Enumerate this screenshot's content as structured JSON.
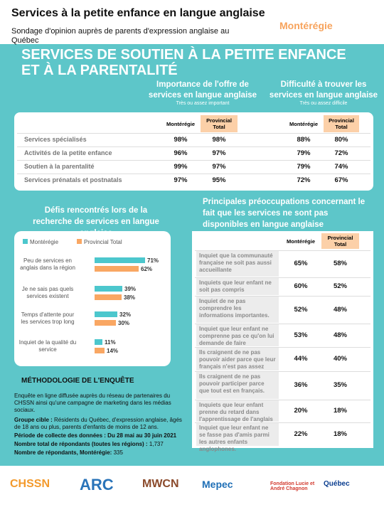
{
  "header": {
    "title": "Services à la petite enfance en langue anglaise",
    "subtitle": "Sondage d'opinion auprès de parents d'expression anglaise au Québec",
    "region": "Montérégie"
  },
  "section": {
    "title": "SERVICES DE SOUTIEN À LA PETITE ENFANCE ET À LA PARENTALITÉ"
  },
  "services_table": {
    "groups": [
      {
        "title": "Importance de l'offre de services en langue anglaise",
        "note": "Très ou assez important"
      },
      {
        "title": "Difficulté à trouver les services en langue anglaise",
        "note": "Très ou assez difficile"
      }
    ],
    "column_headers": [
      "Montérégie",
      "Provincial Total",
      "Montérégie",
      "Provincial Total"
    ],
    "rows": [
      {
        "label": "Services spécialisés",
        "values": [
          "98%",
          "98%",
          "88%",
          "80%"
        ]
      },
      {
        "label": "Activités de la petite enfance",
        "values": [
          "96%",
          "97%",
          "79%",
          "72%"
        ]
      },
      {
        "label": "Soutien à la parentalité",
        "values": [
          "99%",
          "97%",
          "79%",
          "74%"
        ]
      },
      {
        "label": "Services prénatals et postnatals",
        "values": [
          "97%",
          "95%",
          "72%",
          "67%"
        ]
      }
    ]
  },
  "challenges_chart": {
    "type": "bar",
    "title": "Défis rencontrés lors de la recherche de services en langue anglaise",
    "categories": [
      "Peu de services en anglais dans la région",
      "Je ne sais pas quels services existent",
      "Temps d'attente pour les services trop long",
      "Inquiet de la qualité du service"
    ],
    "series": [
      {
        "name": "Montérégie",
        "color": "#4cc7cd",
        "values": [
          71,
          39,
          32,
          11
        ],
        "value_labels": [
          "71%",
          "39%",
          "32%",
          "11%"
        ]
      },
      {
        "name": "Provincial Total",
        "color": "#f9a763",
        "values": [
          62,
          38,
          30,
          14
        ],
        "value_labels": [
          "62%",
          "38%",
          "30%",
          "14%"
        ]
      }
    ]
  },
  "concerns_table": {
    "title": "Principales préoccupations concernant le fait que les services ne sont pas disponibles en langue anglaise",
    "column_headers": [
      "Montérégie",
      "Provincial Total"
    ],
    "rows": [
      {
        "label": "Inquiet que la communauté française ne soit pas aussi accueillante",
        "values": [
          "65%",
          "58%"
        ]
      },
      {
        "label": "Inquiets que leur enfant ne soit pas compris",
        "values": [
          "60%",
          "52%"
        ]
      },
      {
        "label": "Inquiet de ne pas comprendre les informations importantes.",
        "values": [
          "52%",
          "48%"
        ]
      },
      {
        "label": "Inquiet que leur enfant ne comprenne pas ce qu'on lui demande de faire",
        "values": [
          "53%",
          "48%"
        ]
      },
      {
        "label": "Ils craignent de ne pas pouvoir aider parce que leur français n'est pas assez fort.",
        "values": [
          "44%",
          "40%"
        ]
      },
      {
        "label": "Ils craignent de ne pas pouvoir participer parce que tout est en français.",
        "values": [
          "36%",
          "35%"
        ]
      },
      {
        "label": "Inquiets que leur enfant prenne du retard dans l'apprentissage de l'anglais",
        "values": [
          "20%",
          "18%"
        ]
      },
      {
        "label": "Inquiet que leur enfant ne se fasse pas d'amis parmi les autres enfants anglophones.",
        "values": [
          "22%",
          "18%"
        ]
      }
    ]
  },
  "methodology": {
    "title": "MÉTHODOLOGIE DE L'ENQUÊTE",
    "intro": "Enquête en ligne diffusée auprès du réseau de partenaires du CHSSN ainsi qu'une campagne de marketing dans les médias sociaux.",
    "items": [
      {
        "label": "Groupe cible :",
        "text": "Résidents du Québec, d'expression anglaise, âgés de 18 ans ou plus, parents d'enfants de moins de 12 ans."
      },
      {
        "label": "Période de collecte des données :",
        "text": "Du 28 mai au 30 juin 2021"
      },
      {
        "label": "Nombre total de répondants (toutes les régions) :",
        "text": "1,737"
      },
      {
        "label": "Nombre de répondants, Montérégie:",
        "text": "335"
      }
    ]
  },
  "logos": [
    "CHSSN",
    "ARC",
    "MWCN",
    "Mepec",
    "Fondation Lucie et André Chagnon",
    "Québec"
  ]
}
